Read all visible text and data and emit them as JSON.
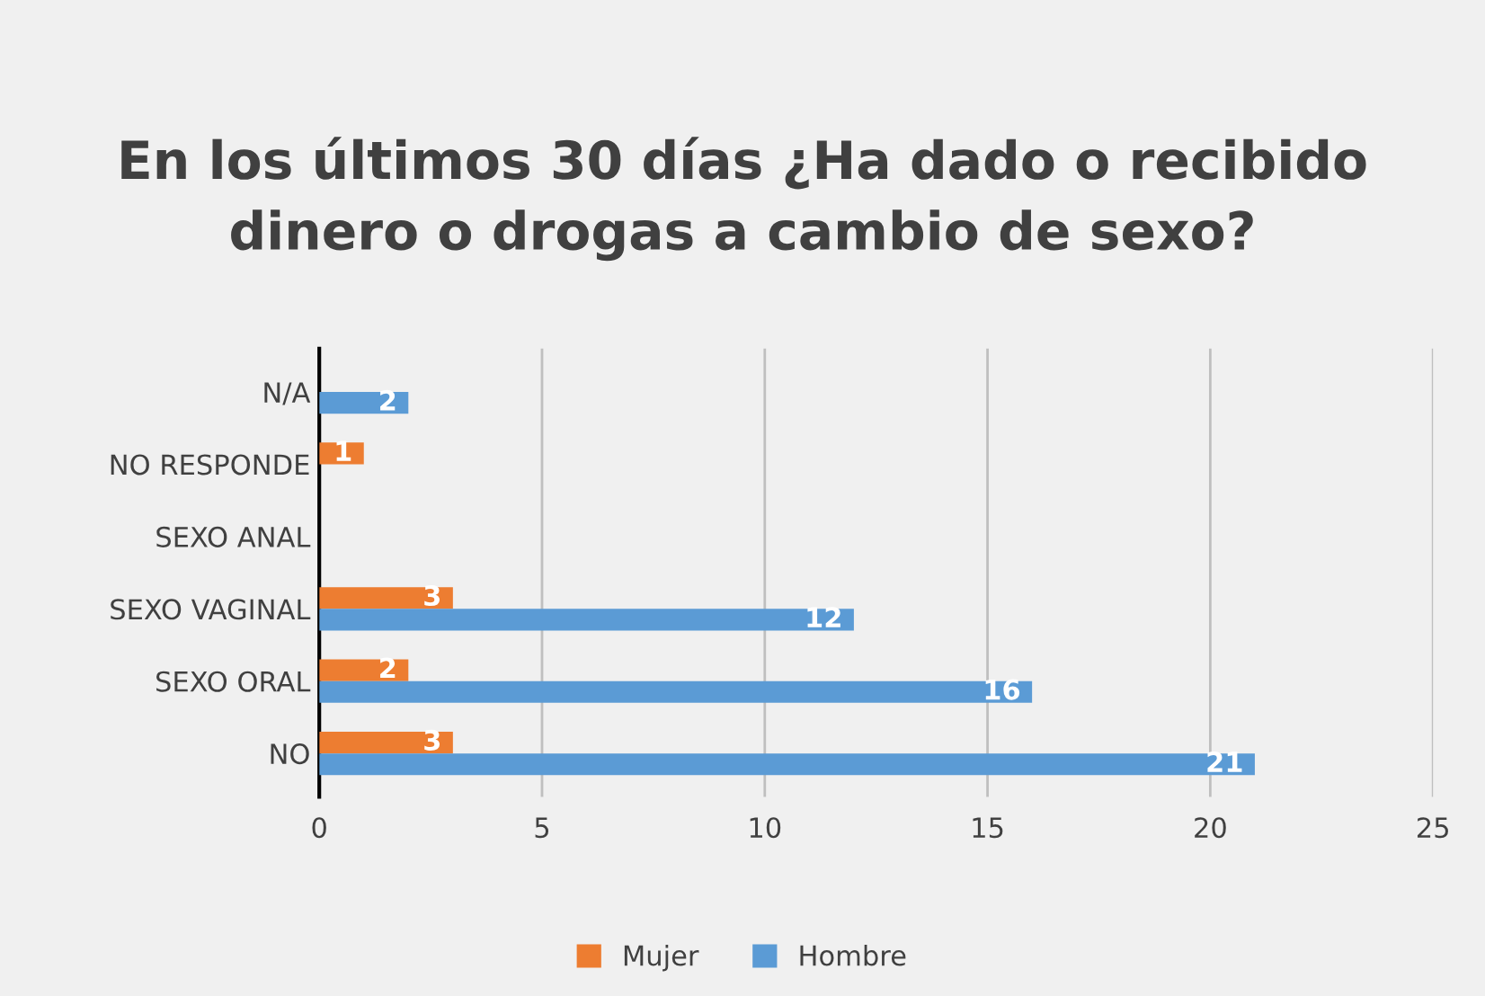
{
  "chart_data": {
    "type": "bar",
    "orientation": "horizontal",
    "title": "En los últimos 30 días ¿Ha dado o recibido\ndinero o drogas a cambio de sexo?",
    "categories": [
      "N/A",
      "NO RESPONDE",
      "SEXO ANAL",
      "SEXO VAGINAL",
      "SEXO ORAL",
      "NO"
    ],
    "series": [
      {
        "name": "Mujer",
        "color": "#ed7d31",
        "values": [
          null,
          1,
          null,
          3,
          2,
          3
        ]
      },
      {
        "name": "Hombre",
        "color": "#5b9bd5",
        "values": [
          2,
          null,
          null,
          12,
          16,
          21
        ]
      }
    ],
    "xlim": [
      0,
      25
    ],
    "xticks": [
      0,
      5,
      10,
      15,
      20,
      25
    ],
    "grid": "x",
    "legend": "bottom",
    "data_labels": true
  }
}
